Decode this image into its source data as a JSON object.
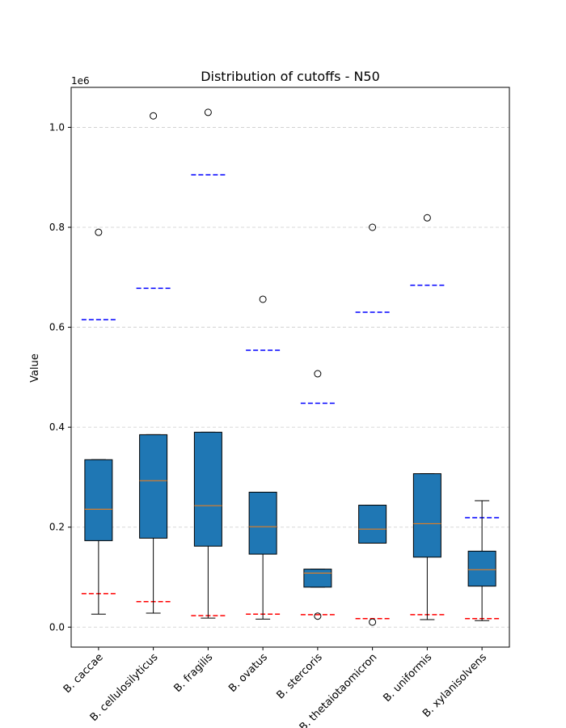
{
  "chart_data": {
    "type": "box",
    "title": "Distribution of cutoffs - N50",
    "xlabel": "",
    "ylabel": "Value",
    "y_offset_label": "1e6",
    "y_multiplier": 1000000,
    "ylim": [
      -0.04,
      1.08
    ],
    "yticks": [
      0.0,
      0.2,
      0.4,
      0.6,
      0.8,
      1.0
    ],
    "ytick_labels": [
      "0.0",
      "0.2",
      "0.4",
      "0.6",
      "0.8",
      "1.0"
    ],
    "grid": "horizontal dashed",
    "categories": [
      "B. caccae",
      "B. cellulosilyticus",
      "B. fragilis",
      "B. ovatus",
      "B. stercoris",
      "B. thetaiotaomicron",
      "B. uniformis",
      "B. xylanisolvens"
    ],
    "boxes": [
      {
        "q1": 0.173,
        "median": 0.236,
        "q3": 0.335,
        "whisker_low": 0.026,
        "whisker_high": 0.335,
        "outliers": [
          0.79
        ]
      },
      {
        "q1": 0.178,
        "median": 0.293,
        "q3": 0.385,
        "whisker_low": 0.028,
        "whisker_high": 0.385,
        "outliers": [
          1.023
        ]
      },
      {
        "q1": 0.162,
        "median": 0.243,
        "q3": 0.39,
        "whisker_low": 0.018,
        "whisker_high": 0.39,
        "outliers": [
          1.03
        ]
      },
      {
        "q1": 0.146,
        "median": 0.201,
        "q3": 0.27,
        "whisker_low": 0.016,
        "whisker_high": 0.27,
        "outliers": [
          0.656
        ]
      },
      {
        "q1": 0.08,
        "median": 0.108,
        "q3": 0.116,
        "whisker_low": 0.08,
        "whisker_high": 0.116,
        "outliers": [
          0.507,
          0.022
        ]
      },
      {
        "q1": 0.168,
        "median": 0.196,
        "q3": 0.244,
        "whisker_low": 0.168,
        "whisker_high": 0.244,
        "outliers": [
          0.8,
          0.01
        ]
      },
      {
        "q1": 0.14,
        "median": 0.207,
        "q3": 0.307,
        "whisker_low": 0.015,
        "whisker_high": 0.307,
        "outliers": [
          0.819
        ]
      },
      {
        "q1": 0.082,
        "median": 0.115,
        "q3": 0.152,
        "whisker_low": 0.013,
        "whisker_high": 0.253,
        "outliers": []
      }
    ],
    "cutoff_lines": [
      {
        "color": "#0000ff",
        "values": [
          0.615,
          0.678,
          0.905,
          0.554,
          0.448,
          0.63,
          0.684,
          0.219
        ]
      },
      {
        "color": "#ff0000",
        "values": [
          0.067,
          0.051,
          0.023,
          0.026,
          0.025,
          0.017,
          0.025,
          0.017
        ]
      }
    ],
    "colors": {
      "box_fill": "#1f77b4",
      "median": "#ff7f0e",
      "edge": "#000000",
      "grid": "#cccccc"
    }
  }
}
